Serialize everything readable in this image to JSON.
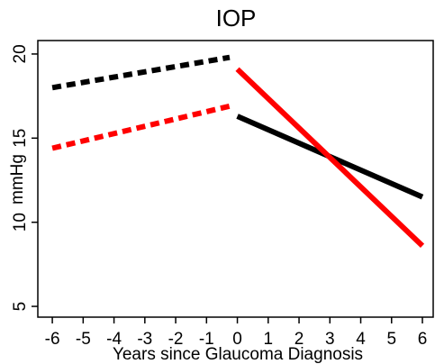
{
  "chart_data": {
    "type": "line",
    "title": "IOP",
    "xlabel": "Years since Glaucoma Diagnosis",
    "ylabel": "mmHg",
    "xlim": [
      -6.47,
      6.35
    ],
    "ylim": [
      4.36,
      20.8
    ],
    "xticks": [
      -6,
      -5,
      -4,
      -3,
      -2,
      -1,
      0,
      1,
      2,
      3,
      4,
      5,
      6
    ],
    "yticks": [
      5,
      10,
      15,
      20
    ],
    "series": [
      {
        "color": "#000000",
        "dashed": true,
        "x": [
          -6,
          -0.25
        ],
        "values": [
          18.0,
          19.8
        ]
      },
      {
        "color": "#ff0000",
        "dashed": true,
        "x": [
          -6,
          -0.25
        ],
        "values": [
          14.4,
          16.9
        ]
      },
      {
        "color": "#000000",
        "dashed": false,
        "x": [
          0,
          6
        ],
        "values": [
          16.3,
          11.5
        ]
      },
      {
        "color": "#ff0000",
        "dashed": false,
        "x": [
          0,
          6
        ],
        "values": [
          19.1,
          8.6
        ]
      }
    ]
  }
}
